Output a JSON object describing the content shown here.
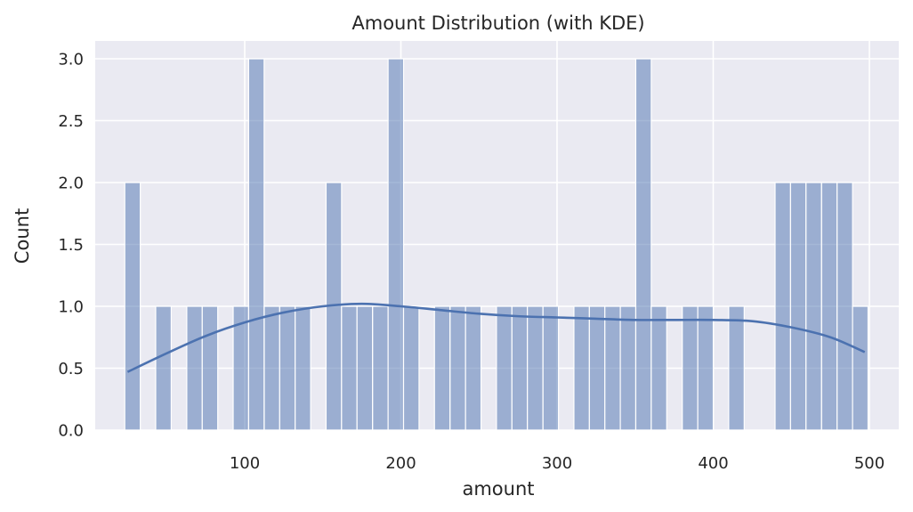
{
  "chart_data": {
    "type": "bar",
    "title": "Amount Distribution (with KDE)",
    "xlabel": "amount",
    "ylabel": "Count",
    "xlim": [
      0,
      515
    ],
    "ylim": [
      0,
      3.15
    ],
    "xticks": [
      100,
      200,
      300,
      400,
      500
    ],
    "yticks": [
      0.0,
      0.5,
      1.0,
      1.5,
      2.0,
      2.5,
      3.0
    ],
    "ytick_labels": [
      "0.0",
      "0.5",
      "1.0",
      "1.5",
      "2.0",
      "2.5",
      "3.0"
    ],
    "grid": true,
    "bin_width": 9.93,
    "bins": [
      {
        "start": 23.2,
        "count": 2
      },
      {
        "start": 43.0,
        "count": 1
      },
      {
        "start": 62.9,
        "count": 1
      },
      {
        "start": 72.8,
        "count": 1
      },
      {
        "start": 92.6,
        "count": 1
      },
      {
        "start": 102.5,
        "count": 3
      },
      {
        "start": 112.5,
        "count": 1
      },
      {
        "start": 122.4,
        "count": 1
      },
      {
        "start": 132.3,
        "count": 1
      },
      {
        "start": 152.1,
        "count": 2
      },
      {
        "start": 162.0,
        "count": 1
      },
      {
        "start": 171.9,
        "count": 1
      },
      {
        "start": 181.9,
        "count": 1
      },
      {
        "start": 191.8,
        "count": 3
      },
      {
        "start": 201.7,
        "count": 1
      },
      {
        "start": 221.5,
        "count": 1
      },
      {
        "start": 231.5,
        "count": 1
      },
      {
        "start": 241.4,
        "count": 1
      },
      {
        "start": 261.2,
        "count": 1
      },
      {
        "start": 271.1,
        "count": 1
      },
      {
        "start": 281.0,
        "count": 1
      },
      {
        "start": 291.0,
        "count": 1
      },
      {
        "start": 310.8,
        "count": 1
      },
      {
        "start": 320.7,
        "count": 1
      },
      {
        "start": 330.6,
        "count": 1
      },
      {
        "start": 340.5,
        "count": 1
      },
      {
        "start": 350.4,
        "count": 3
      },
      {
        "start": 360.3,
        "count": 1
      },
      {
        "start": 380.2,
        "count": 1
      },
      {
        "start": 390.1,
        "count": 1
      },
      {
        "start": 409.9,
        "count": 1
      },
      {
        "start": 439.6,
        "count": 2
      },
      {
        "start": 449.5,
        "count": 2
      },
      {
        "start": 459.4,
        "count": 2
      },
      {
        "start": 469.4,
        "count": 2
      },
      {
        "start": 479.3,
        "count": 2
      },
      {
        "start": 489.2,
        "count": 1
      }
    ],
    "kde": {
      "x": [
        25,
        50,
        75,
        100,
        125,
        150,
        175,
        200,
        225,
        250,
        275,
        300,
        325,
        350,
        375,
        400,
        425,
        450,
        475,
        497
      ],
      "y": [
        0.47,
        0.62,
        0.76,
        0.87,
        0.95,
        1.0,
        1.02,
        1.0,
        0.97,
        0.94,
        0.92,
        0.91,
        0.9,
        0.89,
        0.89,
        0.89,
        0.88,
        0.83,
        0.75,
        0.63
      ]
    },
    "colors": {
      "bar": "#8da0cb",
      "bar_fill": "#4c72b0",
      "kde_line": "#4c72b0",
      "plot_bg": "#eaeaf2",
      "grid": "#ffffff"
    }
  }
}
